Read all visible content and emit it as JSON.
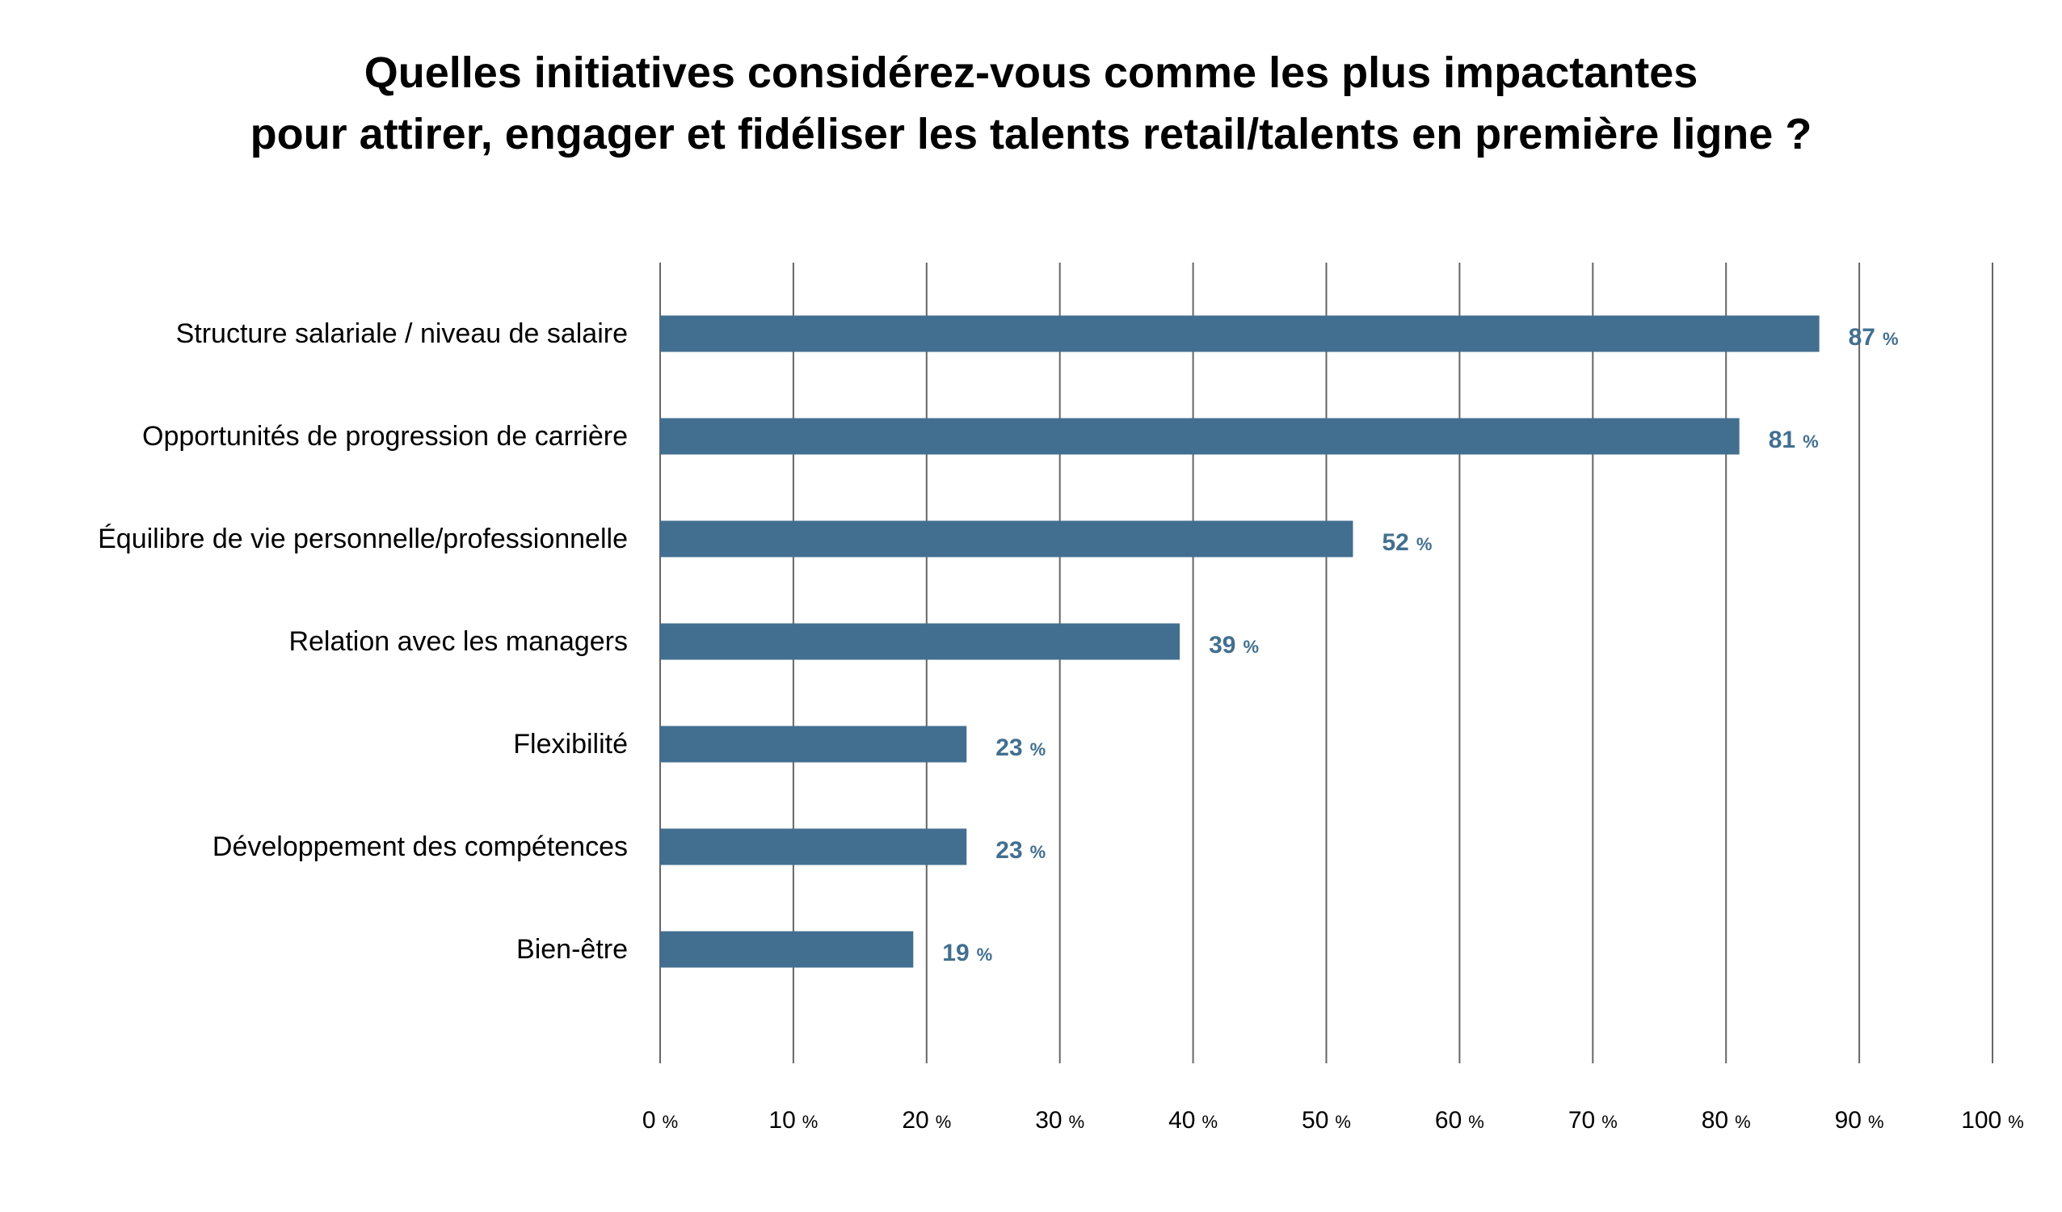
{
  "chart_data": {
    "type": "bar",
    "orientation": "horizontal",
    "title_lines": [
      "Quelles initiatives considérez-vous comme les plus impactantes",
      "pour attirer, engager et fidéliser les talents retail/talents en première ligne ?"
    ],
    "categories": [
      "Structure salariale / niveau de salaire",
      "Opportunités de progression de carrière",
      "Équilibre de vie personnelle/professionnelle",
      "Relation avec les managers",
      "Flexibilité",
      "Développement des compétences",
      "Bien-être"
    ],
    "values": [
      87,
      81,
      52,
      39,
      23,
      23,
      19
    ],
    "value_unit": "%",
    "xlim": [
      0,
      100
    ],
    "xticks": [
      0,
      10,
      20,
      30,
      40,
      50,
      60,
      70,
      80,
      90,
      100
    ],
    "tick_unit": "%",
    "grid": "vertical",
    "legend": "none",
    "colors": {
      "bar": "#426f90",
      "value_label": "#426f90",
      "grid": "#666666",
      "text": "#000000"
    }
  }
}
